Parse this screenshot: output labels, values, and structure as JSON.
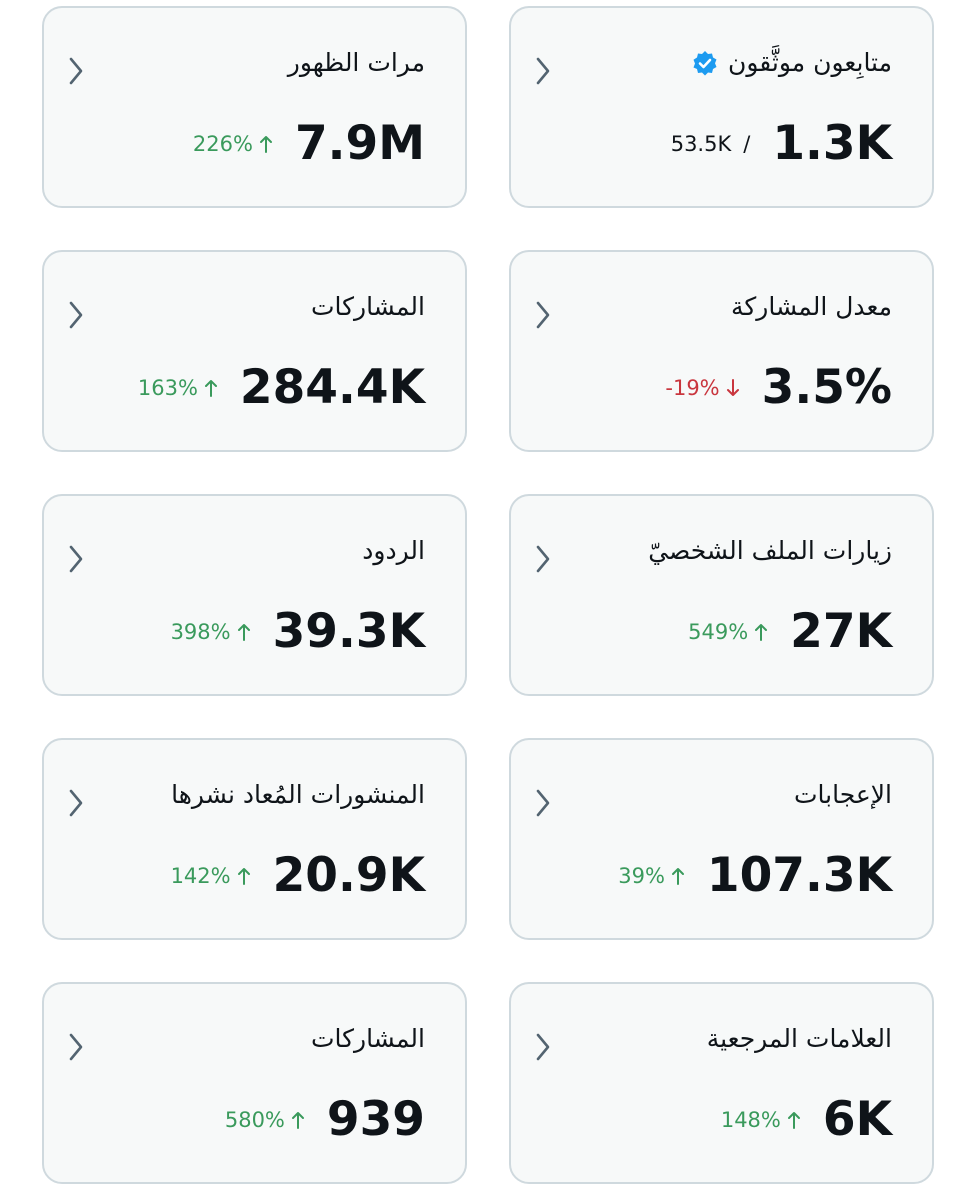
{
  "cards": [
    {
      "title": "متابِعون موثَّقون",
      "value": "1.3K",
      "secondary": "53.5K",
      "separator": "/",
      "verified": true
    },
    {
      "title": "مرات الظهور",
      "value": "7.9M",
      "change": "226%",
      "trend": "up"
    },
    {
      "title": "معدل المشاركة",
      "value": "3.5%",
      "change": "-19%",
      "trend": "down"
    },
    {
      "title": "المشاركات",
      "value": "284.4K",
      "change": "163%",
      "trend": "up"
    },
    {
      "title": "زيارات الملف الشخصيّ",
      "value": "27K",
      "change": "549%",
      "trend": "up"
    },
    {
      "title": "الردود",
      "value": "39.3K",
      "change": "398%",
      "trend": "up"
    },
    {
      "title": "الإعجابات",
      "value": "107.3K",
      "change": "39%",
      "trend": "up"
    },
    {
      "title": "المنشورات المُعاد نشرها",
      "value": "20.9K",
      "change": "142%",
      "trend": "up"
    },
    {
      "title": "العلامات المرجعية",
      "value": "6K",
      "change": "148%",
      "trend": "up"
    },
    {
      "title": "المشاركات",
      "value": "939",
      "change": "580%",
      "trend": "up"
    }
  ]
}
